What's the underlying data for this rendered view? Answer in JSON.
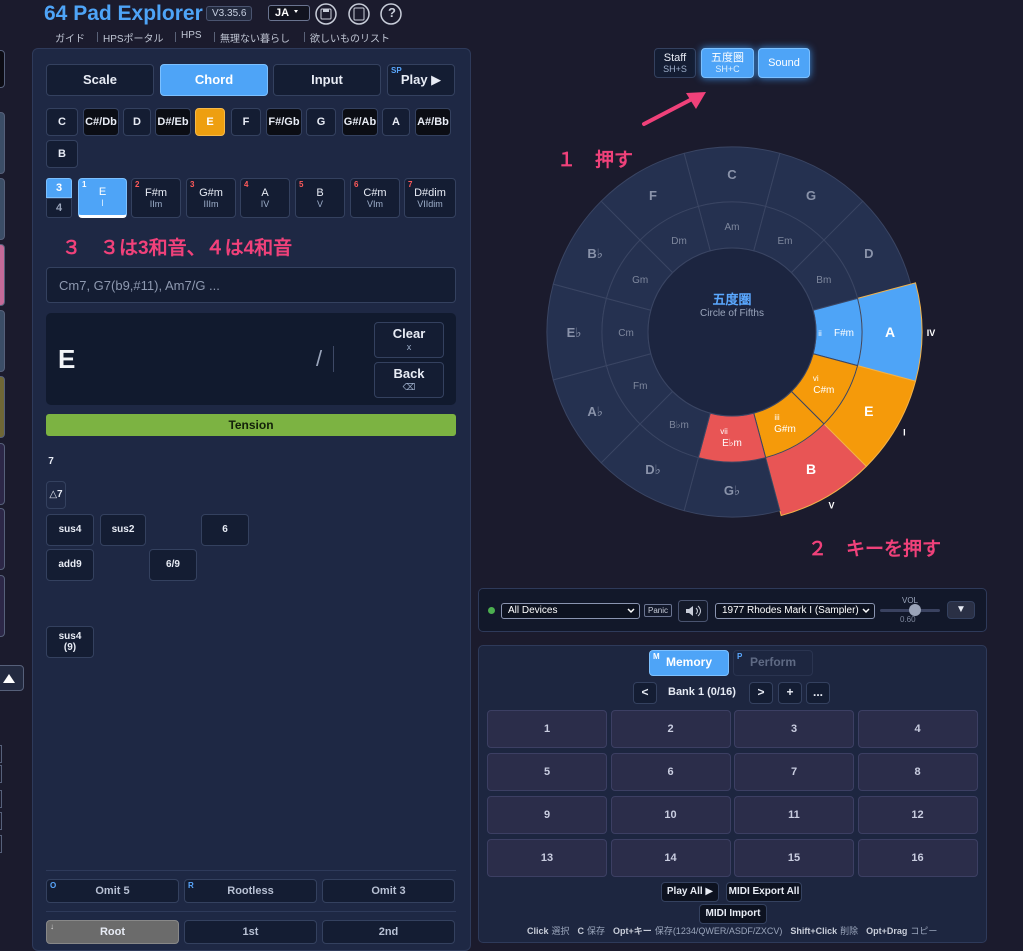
{
  "header": {
    "title": "64 Pad Explorer",
    "version": "V3.35.6",
    "language": "JA",
    "help": "?",
    "links": [
      "ガイド",
      "HPSポータル",
      "HPS",
      "無理ない暮らし",
      "欲しいものリスト"
    ]
  },
  "left_panel": {
    "tabs": [
      {
        "label": "Scale"
      },
      {
        "label": "Chord"
      },
      {
        "label": "Input"
      },
      {
        "label": "Play ▶",
        "shortcut": "SP"
      }
    ],
    "keys": [
      "C",
      "C#/Db",
      "D",
      "D#/Eb",
      "E",
      "F",
      "F#/Gb",
      "G",
      "G#/Ab",
      "A",
      "A#/Bb",
      "B"
    ],
    "chord_size": [
      "3",
      "4"
    ],
    "degrees": [
      {
        "number": "1",
        "chord": "E",
        "roman": "I"
      },
      {
        "number": "2",
        "chord": "F#m",
        "roman": "IIm"
      },
      {
        "number": "3",
        "chord": "G#m",
        "roman": "IIIm"
      },
      {
        "number": "4",
        "chord": "A",
        "roman": "IV"
      },
      {
        "number": "5",
        "chord": "B",
        "roman": "V"
      },
      {
        "number": "6",
        "chord": "C#m",
        "roman": "VIm"
      },
      {
        "number": "7",
        "chord": "D#dim",
        "roman": "VIIdim"
      }
    ],
    "chord_input_placeholder": "Cm7, G7(b9,#11), Am7/G ...",
    "chord_display": {
      "chord": "E",
      "slash": "/"
    },
    "clear": {
      "label": "Clear",
      "shortcut": "x"
    },
    "back": {
      "label": "Back",
      "shortcut": "⌫"
    },
    "tension_header": "Tension",
    "tensions": [
      "7",
      "△7",
      "sus4",
      "sus2",
      "6",
      "add9",
      "6/9",
      "sus4 (9)"
    ],
    "omit": [
      {
        "label": "Omit 5",
        "shortcut": "O"
      },
      {
        "label": "Rootless",
        "shortcut": "R"
      },
      {
        "label": "Omit 3"
      }
    ],
    "inversions": [
      {
        "label": "Root",
        "shortcut": "↓"
      },
      {
        "label": "1st"
      },
      {
        "label": "2nd"
      }
    ]
  },
  "annotations": [
    "３　３は3和音、４は4和音",
    "１　押す",
    "２　キーを押す"
  ],
  "view_buttons": [
    {
      "label": "Staff",
      "shortcut": "SH+S"
    },
    {
      "label": "五度圏",
      "shortcut": "SH+C"
    },
    {
      "label": "Sound"
    }
  ],
  "circle": {
    "title": "五度圏",
    "subtitle": "Circle of Fifths",
    "major": [
      "C",
      "G",
      "D",
      "A",
      "E",
      "B",
      "G♭",
      "D♭",
      "A♭",
      "E♭",
      "B♭",
      "F"
    ],
    "minor": [
      "Am",
      "Em",
      "Bm",
      "F#m",
      "C#m",
      "G#m",
      "E♭m",
      "B♭m",
      "Fm",
      "Cm",
      "Gm",
      "Dm"
    ],
    "major_degrees": [
      null,
      null,
      null,
      "IV",
      "I",
      "V",
      null,
      null,
      null,
      null,
      null,
      null
    ],
    "minor_degrees": [
      null,
      null,
      null,
      "ii",
      "vi",
      "iii",
      "vii",
      null,
      null,
      null,
      null,
      null
    ]
  },
  "device_bar": {
    "device": "All Devices",
    "panic": "Panic",
    "instrument": "1977 Rhodes Mark I (Sampler)",
    "volume_label": "VOL",
    "volume": "0.60",
    "menu": "▼"
  },
  "memory_panel": {
    "tabs": [
      {
        "label": "Memory",
        "shortcut": "M"
      },
      {
        "label": "Perform",
        "shortcut": "P"
      }
    ],
    "prev": "<",
    "bank": "Bank 1 (0/16)",
    "next": ">",
    "add": "+",
    "more": "...",
    "pads": [
      "1",
      "2",
      "3",
      "4",
      "5",
      "6",
      "7",
      "8",
      "9",
      "10",
      "11",
      "12",
      "13",
      "14",
      "15",
      "16"
    ],
    "play_all": "Play All ▶",
    "export": "MIDI Export All",
    "import": "MIDI Import",
    "hints": [
      {
        "key": "Click",
        "action": "選択"
      },
      {
        "key": "C",
        "action": "保存"
      },
      {
        "key": "Opt+キー",
        "action": "保存(1234/QWER/ASDF/ZXCV)"
      },
      {
        "key": "Shift+Click",
        "action": "削除"
      },
      {
        "key": "Opt+Drag",
        "action": "コピー"
      }
    ]
  }
}
